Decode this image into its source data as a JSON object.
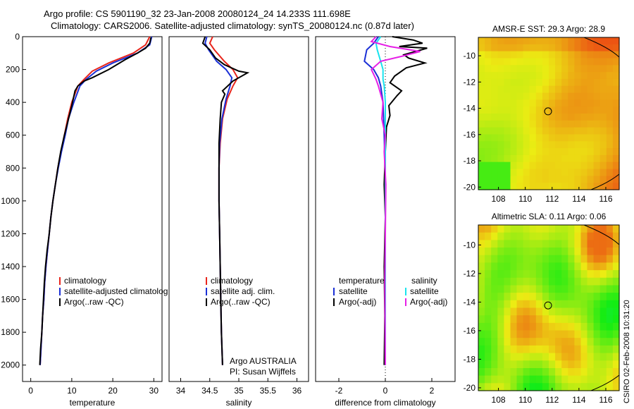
{
  "titles": {
    "line1": "Argo profile: CS 5901190_32 23-Jan-2008 20080124_24 14.233S 111.698E",
    "line2": "Climatology: CARS2006. Satellite-adjusted climatology: synTS_20080124.nc (0.87d later)"
  },
  "side_stamp": "CSIRO 02-Feb-2008 10:31:20",
  "colors": {
    "clim": "#e8251c",
    "sat": "#1a2fd6",
    "argo": "#000000",
    "sat_diff_s": "#19e3ee",
    "argo_diff_s": "#e61fe6"
  },
  "chart_data": [
    {
      "type": "line",
      "xlabel": "temperature",
      "xlim": [
        -2,
        32
      ],
      "ylim": [
        2100,
        0
      ],
      "xticks": [
        0,
        10,
        20,
        30
      ],
      "yticks": [
        0,
        200,
        400,
        600,
        800,
        1000,
        1200,
        1400,
        1600,
        1800,
        2000
      ],
      "legend": [
        "climatology",
        "satellite-adjusted climatolog",
        "Argo(..raw -QC)"
      ],
      "series": [
        {
          "name": "climatology",
          "color": "clim",
          "points": [
            [
              29.0,
              0
            ],
            [
              28.0,
              50
            ],
            [
              25,
              100
            ],
            [
              19,
              160
            ],
            [
              15,
              210
            ],
            [
              13,
              260
            ],
            [
              11.5,
              300
            ],
            [
              10,
              400
            ],
            [
              9.0,
              500
            ],
            [
              8.2,
              600
            ],
            [
              7.4,
              700
            ],
            [
              6.6,
              800
            ],
            [
              6.0,
              900
            ],
            [
              5.4,
              1000
            ],
            [
              4.9,
              1100
            ],
            [
              4.5,
              1200
            ],
            [
              4.1,
              1300
            ],
            [
              3.7,
              1400
            ],
            [
              3.4,
              1500
            ],
            [
              3.2,
              1600
            ],
            [
              2.9,
              1700
            ],
            [
              2.7,
              1800
            ],
            [
              2.5,
              1900
            ],
            [
              2.3,
              2000
            ]
          ]
        },
        {
          "name": "satellite-adjusted climatolog",
          "color": "sat",
          "points": [
            [
              29.5,
              0
            ],
            [
              29.0,
              50
            ],
            [
              26,
              100
            ],
            [
              20,
              160
            ],
            [
              16,
              210
            ],
            [
              13.5,
              260
            ],
            [
              12,
              300
            ],
            [
              10.5,
              400
            ],
            [
              9.2,
              500
            ],
            [
              8.4,
              600
            ],
            [
              7.5,
              700
            ],
            [
              6.7,
              800
            ],
            [
              6.0,
              900
            ],
            [
              5.4,
              1000
            ],
            [
              4.9,
              1100
            ],
            [
              4.5,
              1200
            ],
            [
              4.1,
              1300
            ],
            [
              3.7,
              1400
            ],
            [
              3.4,
              1500
            ],
            [
              3.2,
              1600
            ],
            [
              2.9,
              1700
            ],
            [
              2.7,
              1800
            ],
            [
              2.5,
              1900
            ],
            [
              2.3,
              2000
            ]
          ]
        },
        {
          "name": "Argo(..raw -QC)",
          "color": "argo",
          "points": [
            [
              29.3,
              5
            ],
            [
              29.0,
              40
            ],
            [
              28,
              70
            ],
            [
              26,
              100
            ],
            [
              23,
              140
            ],
            [
              19,
              200
            ],
            [
              15,
              250
            ],
            [
              13,
              270
            ],
            [
              11.5,
              300
            ],
            [
              10.8,
              330
            ],
            [
              10,
              420
            ],
            [
              9,
              520
            ],
            [
              8.2,
              600
            ],
            [
              7.3,
              700
            ],
            [
              6.6,
              800
            ],
            [
              6.0,
              900
            ],
            [
              5.4,
              1000
            ],
            [
              4.9,
              1100
            ],
            [
              4.5,
              1200
            ],
            [
              4.0,
              1300
            ],
            [
              3.6,
              1400
            ],
            [
              3.3,
              1500
            ],
            [
              3.1,
              1600
            ],
            [
              2.9,
              1700
            ],
            [
              2.7,
              1800
            ],
            [
              2.4,
              1900
            ],
            [
              2.2,
              2000
            ]
          ]
        }
      ]
    },
    {
      "type": "line",
      "xlabel": "salinity",
      "xlim": [
        33.8,
        36.2
      ],
      "ylim": [
        2100,
        0
      ],
      "xticks": [
        34,
        34.5,
        35,
        35.5,
        36
      ],
      "yticks": [],
      "legend": [
        "climatology",
        "satellite adj. clim.",
        "Argo(..raw -QC)"
      ],
      "annotation": [
        "Argo AUSTRALIA",
        "PI: Susan Wijffels"
      ],
      "series": [
        {
          "name": "climatology",
          "color": "clim",
          "points": [
            [
              34.55,
              0
            ],
            [
              34.5,
              40
            ],
            [
              34.58,
              80
            ],
            [
              34.75,
              150
            ],
            [
              34.9,
              200
            ],
            [
              34.98,
              250
            ],
            [
              34.9,
              300
            ],
            [
              34.8,
              380
            ],
            [
              34.72,
              500
            ],
            [
              34.68,
              650
            ],
            [
              34.66,
              800
            ],
            [
              34.66,
              1000
            ],
            [
              34.67,
              1200
            ],
            [
              34.68,
              1400
            ],
            [
              34.69,
              1600
            ],
            [
              34.7,
              1800
            ],
            [
              34.72,
              2000
            ]
          ]
        },
        {
          "name": "satellite adj. clim.",
          "color": "sat",
          "points": [
            [
              34.45,
              0
            ],
            [
              34.42,
              40
            ],
            [
              34.48,
              80
            ],
            [
              34.62,
              150
            ],
            [
              34.78,
              200
            ],
            [
              34.88,
              250
            ],
            [
              34.85,
              300
            ],
            [
              34.78,
              380
            ],
            [
              34.71,
              500
            ],
            [
              34.67,
              650
            ],
            [
              34.66,
              800
            ],
            [
              34.66,
              1000
            ],
            [
              34.67,
              1200
            ],
            [
              34.68,
              1400
            ],
            [
              34.69,
              1600
            ],
            [
              34.7,
              1800
            ],
            [
              34.72,
              2000
            ]
          ]
        },
        {
          "name": "Argo(..raw -QC)",
          "color": "argo",
          "points": [
            [
              34.42,
              0
            ],
            [
              34.38,
              40
            ],
            [
              34.5,
              80
            ],
            [
              34.6,
              130
            ],
            [
              34.75,
              170
            ],
            [
              35.0,
              210
            ],
            [
              35.15,
              220
            ],
            [
              34.9,
              270
            ],
            [
              34.72,
              330
            ],
            [
              34.76,
              350
            ],
            [
              34.7,
              400
            ],
            [
              34.68,
              500
            ],
            [
              34.66,
              650
            ],
            [
              34.66,
              800
            ],
            [
              34.66,
              1000
            ],
            [
              34.67,
              1200
            ],
            [
              34.68,
              1400
            ],
            [
              34.69,
              1600
            ],
            [
              34.7,
              1800
            ],
            [
              34.72,
              2000
            ]
          ]
        }
      ]
    },
    {
      "type": "line",
      "xlabel": "difference from climatology",
      "xlim": [
        -3,
        3
      ],
      "ylim": [
        2100,
        0
      ],
      "xticks": [
        -2,
        0,
        2
      ],
      "yticks": [],
      "legend_left_title": "temperature",
      "legend_right_title": "salinity",
      "legend_left": [
        "satellite",
        "Argo(-adj)"
      ],
      "legend_right": [
        "satellite",
        "Argo(-adj)"
      ],
      "series": [
        {
          "name": "satellite",
          "color": "sat",
          "points": [
            [
              -0.3,
              0
            ],
            [
              -0.5,
              40
            ],
            [
              -0.8,
              80
            ],
            [
              -0.9,
              150
            ],
            [
              -0.5,
              200
            ],
            [
              -0.3,
              250
            ],
            [
              -0.2,
              300
            ],
            [
              -0.1,
              400
            ],
            [
              -0.05,
              600
            ],
            [
              0,
              900
            ],
            [
              0,
              2000
            ]
          ]
        },
        {
          "name": "Argo(-adj)",
          "color": "argo",
          "points": [
            [
              0.3,
              0
            ],
            [
              1.2,
              20
            ],
            [
              1.6,
              40
            ],
            [
              0.6,
              60
            ],
            [
              1.8,
              70
            ],
            [
              1.3,
              90
            ],
            [
              0.8,
              110
            ],
            [
              1.0,
              130
            ],
            [
              1.7,
              160
            ],
            [
              0.9,
              190
            ],
            [
              0.4,
              240
            ],
            [
              0.2,
              280
            ],
            [
              0.7,
              330
            ],
            [
              0.5,
              360
            ],
            [
              0.15,
              420
            ],
            [
              0.2,
              480
            ],
            [
              0.05,
              550
            ],
            [
              0.0,
              700
            ],
            [
              -0.05,
              900
            ],
            [
              0.0,
              1100
            ],
            [
              -0.05,
              1400
            ],
            [
              -0.02,
              1700
            ],
            [
              -0.05,
              2000
            ]
          ]
        },
        {
          "name": "satellite",
          "color": "sat_diff_s",
          "points": [
            [
              -0.2,
              0
            ],
            [
              -0.4,
              40
            ],
            [
              -0.35,
              80
            ],
            [
              -0.2,
              150
            ],
            [
              -0.1,
              200
            ],
            [
              -0.1,
              260
            ],
            [
              -0.05,
              300
            ],
            [
              0,
              400
            ],
            [
              0,
              600
            ],
            [
              0,
              900
            ],
            [
              0,
              2000
            ]
          ]
        },
        {
          "name": "Argo(-adj)",
          "color": "argo_diff_s",
          "points": [
            [
              -0.4,
              0
            ],
            [
              -0.6,
              30
            ],
            [
              0.2,
              60
            ],
            [
              1.5,
              90
            ],
            [
              0.7,
              120
            ],
            [
              -0.2,
              150
            ],
            [
              -0.6,
              200
            ],
            [
              -0.4,
              260
            ],
            [
              -0.3,
              300
            ],
            [
              -0.1,
              400
            ],
            [
              -0.15,
              500
            ],
            [
              0.0,
              600
            ],
            [
              -0.05,
              700
            ],
            [
              0.02,
              900
            ],
            [
              0.0,
              1200
            ],
            [
              -0.02,
              1500
            ],
            [
              0.0,
              2000
            ]
          ]
        }
      ]
    },
    {
      "type": "heatmap",
      "title": "AMSR-E SST: 29.3 Argo: 28.9",
      "xlim": [
        106.5,
        117
      ],
      "ylim": [
        -20.2,
        -8.6
      ],
      "xticks": [
        108,
        110,
        112,
        114,
        116
      ],
      "yticks": [
        -10,
        -12,
        -14,
        -16,
        -18,
        -20
      ],
      "marker": [
        111.698,
        -14.233
      ]
    },
    {
      "type": "heatmap",
      "title": "Altimetric SLA: 0.11 Argo: 0.06",
      "xlim": [
        106.5,
        117
      ],
      "ylim": [
        -20.2,
        -8.6
      ],
      "xticks": [
        108,
        110,
        112,
        114,
        116
      ],
      "yticks": [
        -10,
        -12,
        -14,
        -16,
        -18,
        -20
      ],
      "marker": [
        111.698,
        -14.233
      ]
    }
  ]
}
